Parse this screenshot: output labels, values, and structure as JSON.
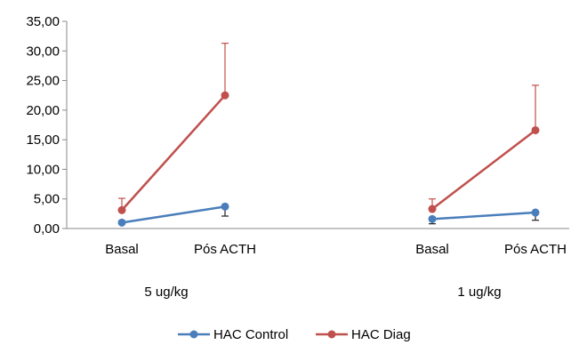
{
  "chart_data": {
    "type": "line",
    "ylim": [
      0,
      35
    ],
    "yticks": [
      "0,00",
      "5,00",
      "10,00",
      "15,00",
      "20,00",
      "25,00",
      "30,00",
      "35,00"
    ],
    "panels": [
      {
        "group_label": "5 ug/kg",
        "categories": [
          "Basal",
          "Pós ACTH"
        ]
      },
      {
        "group_label": "1 ug/kg",
        "categories": [
          "Basal",
          "Pós ACTH"
        ]
      }
    ],
    "series": [
      {
        "name": "HAC Control",
        "color": "#4a7ebb",
        "error_direction": "down",
        "panels": [
          {
            "values": [
              1.0,
              3.7
            ],
            "errors": [
              0.0,
              1.6
            ]
          },
          {
            "values": [
              1.6,
              2.7
            ],
            "errors": [
              0.8,
              1.3
            ]
          }
        ]
      },
      {
        "name": "HAC Diag",
        "color": "#c0504d",
        "error_direction": "up",
        "panels": [
          {
            "values": [
              3.1,
              22.5
            ],
            "errors": [
              2.0,
              8.8
            ]
          },
          {
            "values": [
              3.3,
              16.6
            ],
            "errors": [
              1.7,
              7.6
            ]
          }
        ]
      }
    ],
    "legend_position": "bottom"
  }
}
